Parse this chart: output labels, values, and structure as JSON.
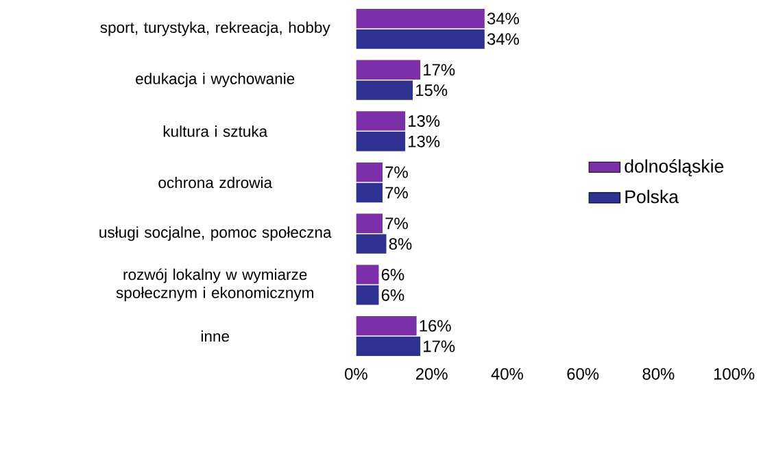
{
  "chart_data": {
    "type": "bar",
    "orientation": "horizontal",
    "categories": [
      "sport, turystyka, rekreacja, hobby",
      "edukacja i wychowanie",
      "kultura i sztuka",
      "ochrona zdrowia",
      "usługi socjalne, pomoc społeczna",
      "rozwój lokalny w wymiarze społecznym i ekonomicznym",
      "inne"
    ],
    "series": [
      {
        "name": "dolnośląskie",
        "color": "#7b2fa8",
        "values": [
          34,
          17,
          13,
          7,
          7,
          6,
          16
        ],
        "value_labels": [
          "34%",
          "17%",
          "13%",
          "7%",
          "7%",
          "6%",
          "16%"
        ]
      },
      {
        "name": "Polska",
        "color": "#2e3192",
        "values": [
          34,
          15,
          13,
          7,
          8,
          6,
          17
        ],
        "value_labels": [
          "34%",
          "15%",
          "13%",
          "7%",
          "8%",
          "6%",
          "17%"
        ]
      }
    ],
    "xlim": [
      0,
      100
    ],
    "xticks": [
      {
        "value": 0,
        "label": "0%"
      },
      {
        "value": 20,
        "label": "20%"
      },
      {
        "value": 40,
        "label": "40%"
      },
      {
        "value": 60,
        "label": "60%"
      },
      {
        "value": 80,
        "label": "80%"
      },
      {
        "value": 100,
        "label": "100%"
      }
    ],
    "grid": false,
    "legend": "right"
  }
}
